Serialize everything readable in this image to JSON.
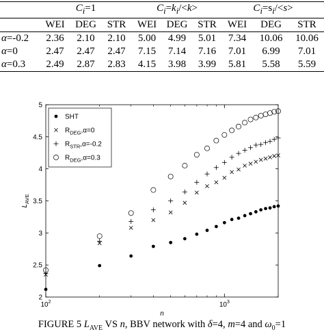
{
  "table": {
    "group_headers": [
      "C_i=1",
      "C_i=k_i/<k>",
      "C_i=s_i/<s>"
    ],
    "subheaders": [
      "WEI",
      "DEG",
      "STR",
      "WEI",
      "DEG",
      "STR",
      "WEI",
      "DEG",
      "STR"
    ],
    "rows": [
      {
        "label": "α=-0.2",
        "values": [
          "2.36",
          "2.10",
          "2.10",
          "5.00",
          "4.99",
          "5.01",
          "7.34",
          "10.06",
          "10.06"
        ]
      },
      {
        "label": "α=0",
        "values": [
          "2.47",
          "2.47",
          "2.47",
          "7.15",
          "7.14",
          "7.16",
          "7.01",
          "6.99",
          "7.01"
        ]
      },
      {
        "label": "α=0.3",
        "values": [
          "2.49",
          "2.87",
          "2.83",
          "4.15",
          "3.98",
          "3.99",
          "5.81",
          "5.58",
          "5.59"
        ]
      }
    ]
  },
  "chart_data": {
    "type": "scatter",
    "xlabel": "n",
    "ylabel": "L_AVE",
    "xscale": "log",
    "xlim": [
      100,
      2000
    ],
    "ylim": [
      2,
      5
    ],
    "x_ticks": [
      "10^2",
      "10^3"
    ],
    "y_ticks": [
      "2",
      "2.5",
      "3",
      "3.5",
      "4",
      "4.5",
      "5"
    ],
    "legend_position": "top-left",
    "series": [
      {
        "name": "SHT",
        "marker": "filled-dot",
        "x": [
          100,
          200,
          300,
          400,
          500,
          600,
          700,
          800,
          900,
          1000,
          1100,
          1200,
          1300,
          1400,
          1500,
          1600,
          1700,
          1800,
          1900,
          2000
        ],
        "y": [
          2.12,
          2.49,
          2.64,
          2.79,
          2.85,
          2.91,
          2.98,
          3.04,
          3.1,
          3.16,
          3.21,
          3.23,
          3.27,
          3.3,
          3.33,
          3.36,
          3.38,
          3.39,
          3.41,
          3.42
        ]
      },
      {
        "name": "R_DEG,α=0",
        "marker": "x",
        "x": [
          100,
          200,
          300,
          400,
          500,
          600,
          700,
          800,
          900,
          1000,
          1100,
          1200,
          1300,
          1400,
          1500,
          1600,
          1700,
          1800,
          1900,
          2000
        ],
        "y": [
          2.35,
          2.84,
          3.08,
          3.2,
          3.32,
          3.47,
          3.63,
          3.73,
          3.79,
          3.86,
          3.95,
          3.99,
          4.05,
          4.08,
          4.11,
          4.14,
          4.16,
          4.18,
          4.2,
          4.21
        ]
      },
      {
        "name": "R_STR,α=-0.2",
        "marker": "plus",
        "x": [
          100,
          200,
          300,
          400,
          500,
          600,
          700,
          800,
          900,
          1000,
          1100,
          1200,
          1300,
          1400,
          1500,
          1600,
          1700,
          1800,
          1900,
          2000
        ],
        "y": [
          2.37,
          2.87,
          3.18,
          3.36,
          3.5,
          3.64,
          3.79,
          3.92,
          4.02,
          4.1,
          4.18,
          4.24,
          4.29,
          4.33,
          4.37,
          4.38,
          4.41,
          4.43,
          4.46,
          4.48
        ]
      },
      {
        "name": "R_DEG,α=0.3",
        "marker": "open-circle",
        "x": [
          100,
          200,
          300,
          400,
          500,
          600,
          700,
          800,
          900,
          1000,
          1100,
          1200,
          1300,
          1400,
          1500,
          1600,
          1700,
          1800,
          1900,
          2000
        ],
        "y": [
          2.42,
          2.95,
          3.31,
          3.67,
          3.88,
          4.05,
          4.22,
          4.32,
          4.44,
          4.53,
          4.6,
          4.66,
          4.72,
          4.77,
          4.8,
          4.83,
          4.85,
          4.87,
          4.89,
          4.9
        ]
      }
    ]
  },
  "caption": {
    "prefix": "FIGURE 5 ",
    "l_ave": "L",
    "l_ave_sub": "AVE",
    "vs": " VS ",
    "n": "n",
    "text1": ", BBV network with ",
    "delta": "δ",
    "text2": "=4, ",
    "m": "m",
    "text3": "=4 and ",
    "omega": "ω",
    "omega_sub": "0",
    "text4": "=1"
  },
  "colors": {
    "ink": "#000000",
    "background": "#ffffff"
  }
}
